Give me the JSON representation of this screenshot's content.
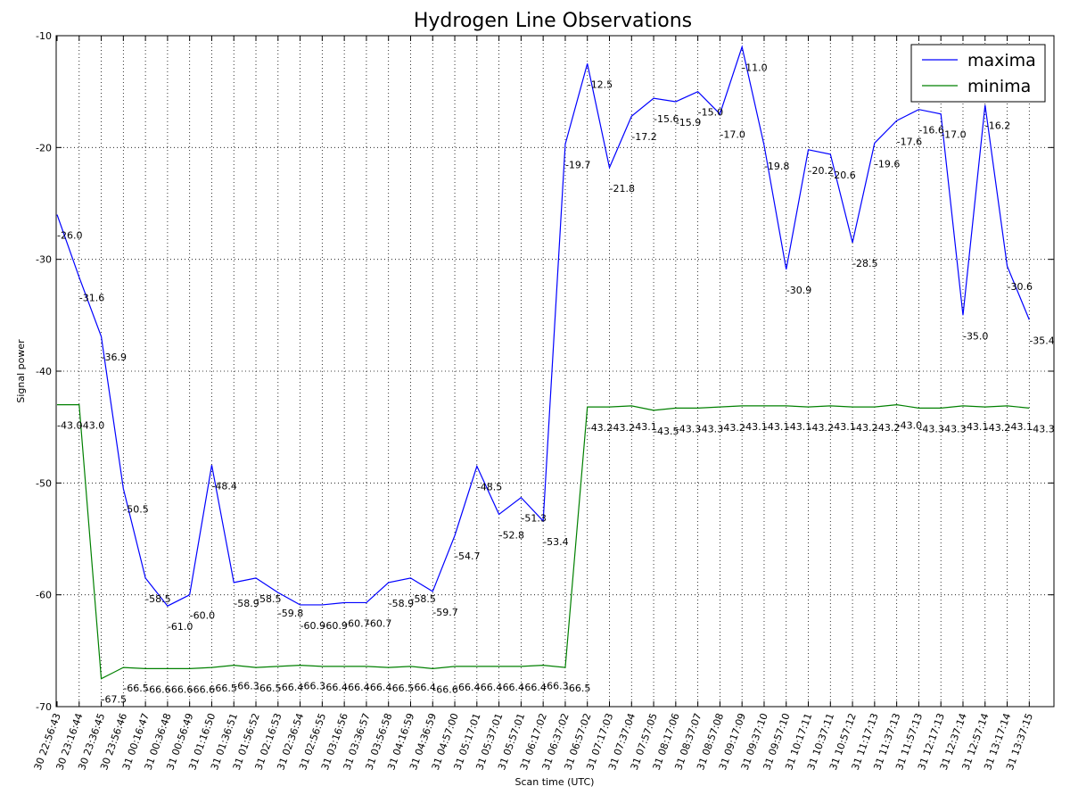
{
  "chart_data": {
    "type": "line",
    "title": "Hydrogen Line Observations",
    "xlabel": "Scan time (UTC)",
    "ylabel": "Signal power",
    "ylim": [
      -70,
      -10
    ],
    "yticks": [
      "-10",
      "-20",
      "-30",
      "-40",
      "-50",
      "-60",
      "-70"
    ],
    "ytick_values": [
      -10,
      -20,
      -30,
      -40,
      -50,
      -60,
      -70
    ],
    "grid": true,
    "legend_position": "top-right",
    "categories": [
      "30 22:56:43",
      "30 23:16:44",
      "30 23:36:45",
      "30 23:56:46",
      "31 00:16:47",
      "31 00:36:48",
      "31 00:56:49",
      "31 01:16:50",
      "31 01:36:51",
      "31 01:56:52",
      "31 02:16:53",
      "31 02:36:54",
      "31 02:56:55",
      "31 03:16:56",
      "31 03:36:57",
      "31 03:56:58",
      "31 04:16:59",
      "31 04:36:59",
      "31 04:57:00",
      "31 05:17:01",
      "31 05:37:01",
      "31 05:57:01",
      "31 06:17:02",
      "31 06:37:02",
      "31 06:57:02",
      "31 07:17:03",
      "31 07:37:04",
      "31 07:57:05",
      "31 08:17:06",
      "31 08:37:07",
      "31 08:57:08",
      "31 09:17:09",
      "31 09:37:10",
      "31 09:57:10",
      "31 10:17:11",
      "31 10:37:11",
      "31 10:57:12",
      "31 11:17:13",
      "31 11:37:13",
      "31 11:57:13",
      "31 12:17:13",
      "31 12:37:14",
      "31 12:57:14",
      "31 13:17:14",
      "31 13:37:15"
    ],
    "series": [
      {
        "name": "maxima",
        "color": "#0000ff",
        "values": [
          -26.0,
          -31.6,
          -36.9,
          -50.5,
          -58.5,
          -61.0,
          -60.0,
          -48.4,
          -58.9,
          -58.5,
          -59.8,
          -60.9,
          -60.9,
          -60.7,
          -60.7,
          -58.9,
          -58.5,
          -59.7,
          -54.7,
          -48.5,
          -52.8,
          -51.3,
          -53.4,
          -19.7,
          -12.5,
          -21.8,
          -17.2,
          -15.6,
          -15.9,
          -15.0,
          -17.0,
          -11.0,
          -19.8,
          -30.9,
          -20.2,
          -20.6,
          -28.5,
          -19.6,
          -17.6,
          -16.6,
          -17.0,
          -35.0,
          -16.2,
          -30.6,
          -35.4
        ],
        "labels": [
          "-26.0",
          "-31.6",
          "-36.9",
          "-50.5",
          "-58.5",
          "-61.0",
          "-60.0",
          "-48.4",
          "-58.9",
          "-58.5",
          "-59.8",
          "-60.9",
          "-60.9",
          "-60.7",
          "-60.7",
          "-58.9",
          "-58.5",
          "-59.7",
          "-54.7",
          "-48.5",
          "-52.8",
          "-51.3",
          "-53.4",
          "-19.7",
          "-12.5",
          "-21.8",
          "-17.2",
          "-15.6",
          "-15.9",
          "-15.0",
          "-17.0",
          "-11.0",
          "-19.8",
          "-30.9",
          "-20.2",
          "-20.6",
          "-28.5",
          "-19.6",
          "-17.6",
          "-16.6",
          "-17.0",
          "-35.0",
          "-16.2",
          "-30.6",
          "-35.4"
        ]
      },
      {
        "name": "minima",
        "color": "#008000",
        "values": [
          -43.0,
          -43.0,
          -67.5,
          -66.5,
          -66.6,
          -66.6,
          -66.6,
          -66.5,
          -66.3,
          -66.5,
          -66.4,
          -66.3,
          -66.4,
          -66.4,
          -66.4,
          -66.5,
          -66.4,
          -66.6,
          -66.4,
          -66.4,
          -66.4,
          -66.4,
          -66.3,
          -66.5,
          -43.2,
          -43.2,
          -43.1,
          -43.5,
          -43.3,
          -43.3,
          -43.2,
          -43.1,
          -43.1,
          -43.1,
          -43.2,
          -43.1,
          -43.2,
          -43.2,
          -43.0,
          -43.3,
          -43.3,
          -43.1,
          -43.2,
          -43.1,
          -43.3
        ],
        "labels": [
          "-43.0",
          "-43.0",
          "-67.5",
          "-66.5",
          "-66.6",
          "-66.6",
          "-66.6",
          "-66.5",
          "-66.3",
          "-66.5",
          "-66.4",
          "-66.3",
          "-66.4",
          "-66.4",
          "-66.4",
          "-66.5",
          "-66.4",
          "-66.6",
          "-66.4",
          "-66.4",
          "-66.4",
          "-66.4",
          "-66.3",
          "-66.5",
          "-43.2",
          "-43.2",
          "-43.1",
          "-43.5",
          "-43.3",
          "-43.3",
          "-43.2",
          "-43.1",
          "-43.1",
          "-43.1",
          "-43.2",
          "-43.1",
          "-43.2",
          "-43.2",
          "-43.0",
          "-43.3",
          "-43.3",
          "-43.1",
          "-43.2",
          "-43.1",
          "-43.3"
        ]
      }
    ]
  }
}
